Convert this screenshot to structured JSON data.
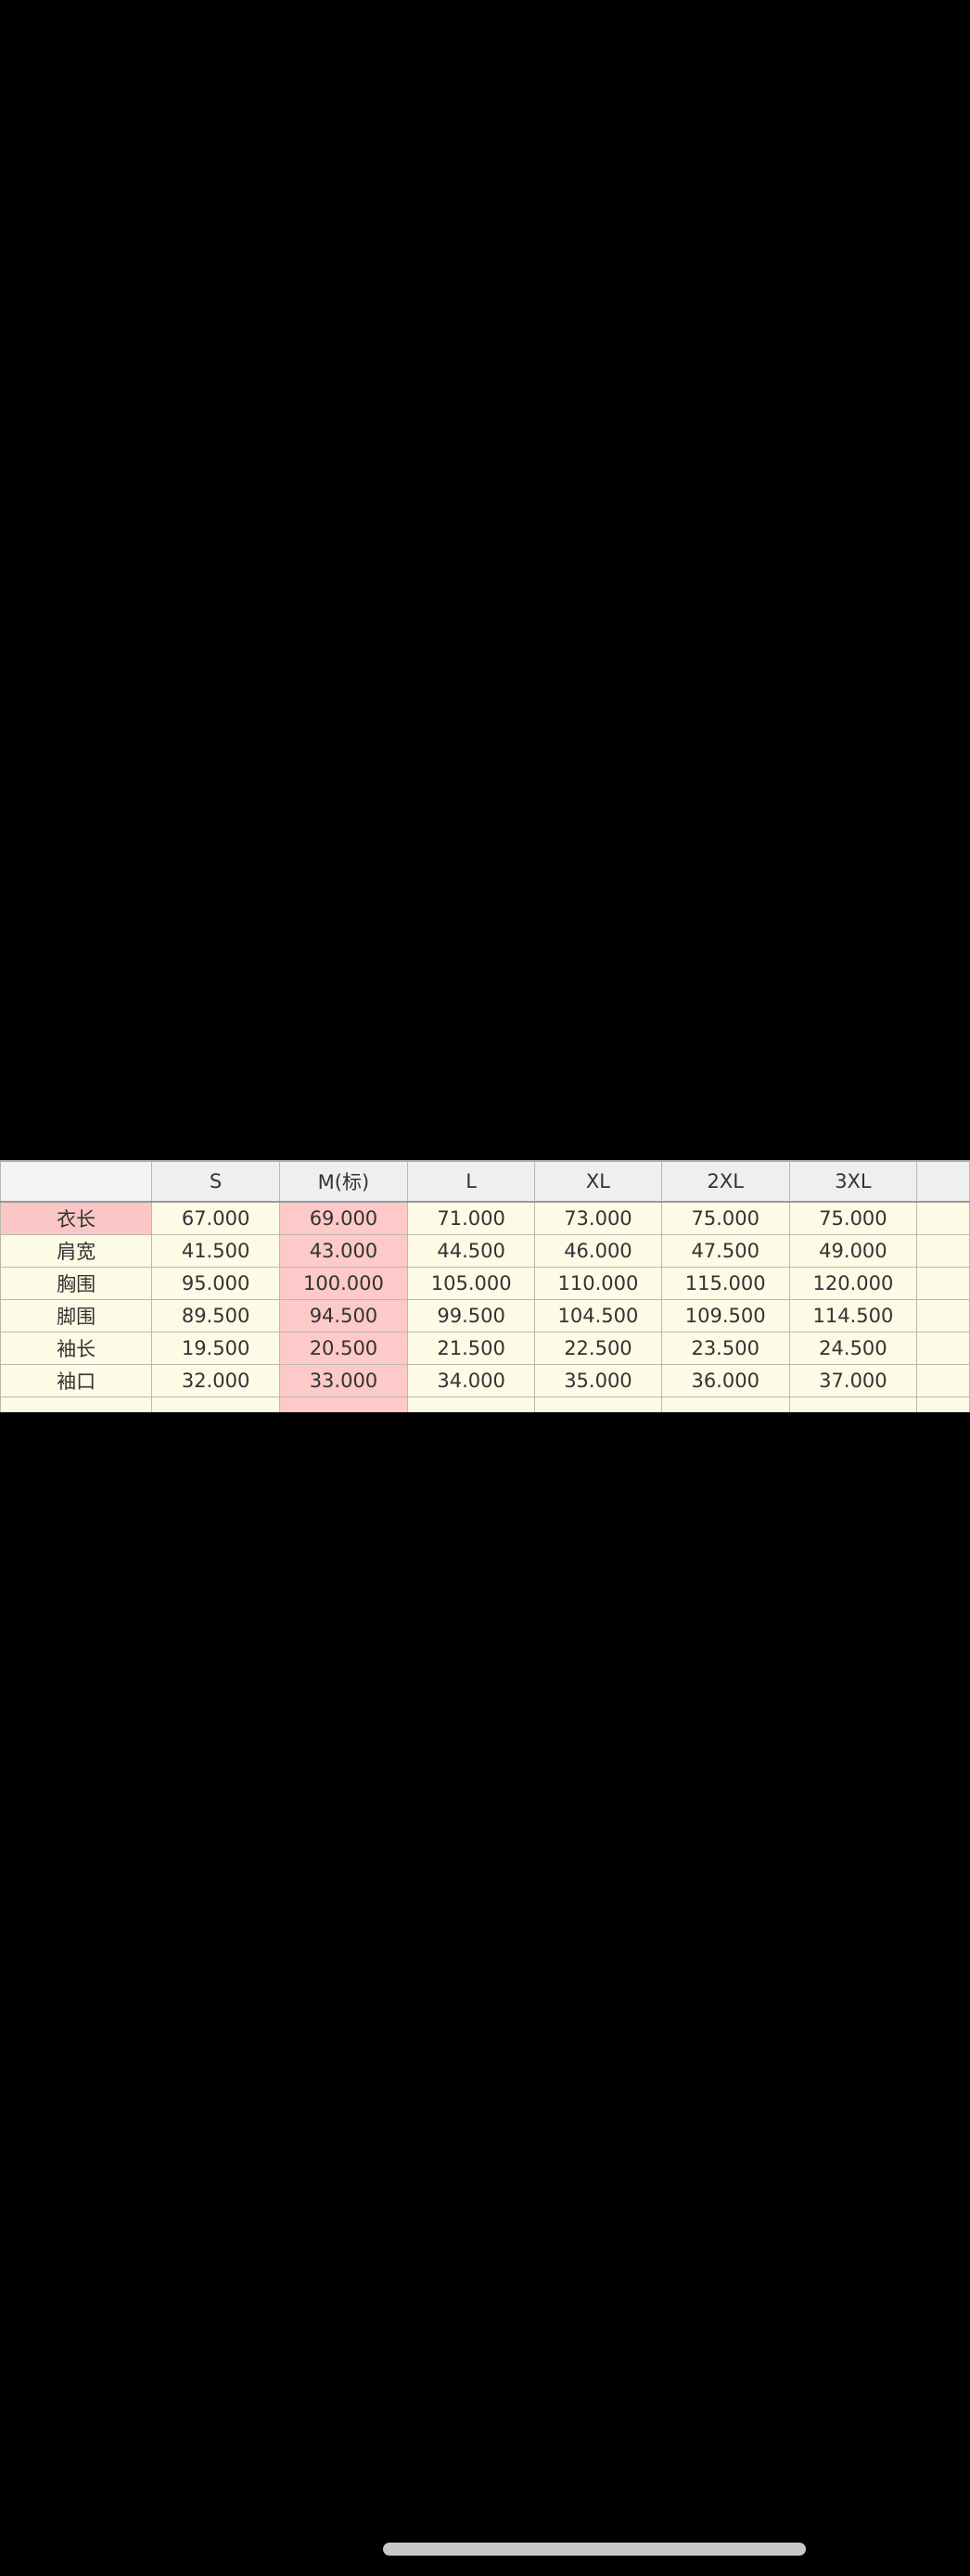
{
  "table": {
    "columns": [
      "",
      "S",
      "M(标)",
      "L",
      "XL",
      "2XL",
      "3XL",
      ""
    ],
    "highlight_column": "M(标)",
    "highlight_color": "#fdc9c9",
    "cell_color": "#fdfbe6",
    "header_color": "#efefef",
    "rows": [
      {
        "label": "衣长",
        "values": [
          "67.000",
          "69.000",
          "71.000",
          "73.000",
          "75.000",
          "75.000",
          ""
        ]
      },
      {
        "label": "肩宽",
        "values": [
          "41.500",
          "43.000",
          "44.500",
          "46.000",
          "47.500",
          "49.000",
          ""
        ]
      },
      {
        "label": "胸围",
        "values": [
          "95.000",
          "100.000",
          "105.000",
          "110.000",
          "115.000",
          "120.000",
          ""
        ]
      },
      {
        "label": "脚围",
        "values": [
          "89.500",
          "94.500",
          "99.500",
          "104.500",
          "109.500",
          "114.500",
          ""
        ]
      },
      {
        "label": "袖长",
        "values": [
          "19.500",
          "20.500",
          "21.500",
          "22.500",
          "23.500",
          "24.500",
          ""
        ]
      },
      {
        "label": "袖口",
        "values": [
          "32.000",
          "33.000",
          "34.000",
          "35.000",
          "36.000",
          "37.000",
          ""
        ]
      },
      {
        "label": "",
        "values": [
          "",
          "",
          "",
          "",
          "",
          "",
          ""
        ]
      }
    ]
  }
}
